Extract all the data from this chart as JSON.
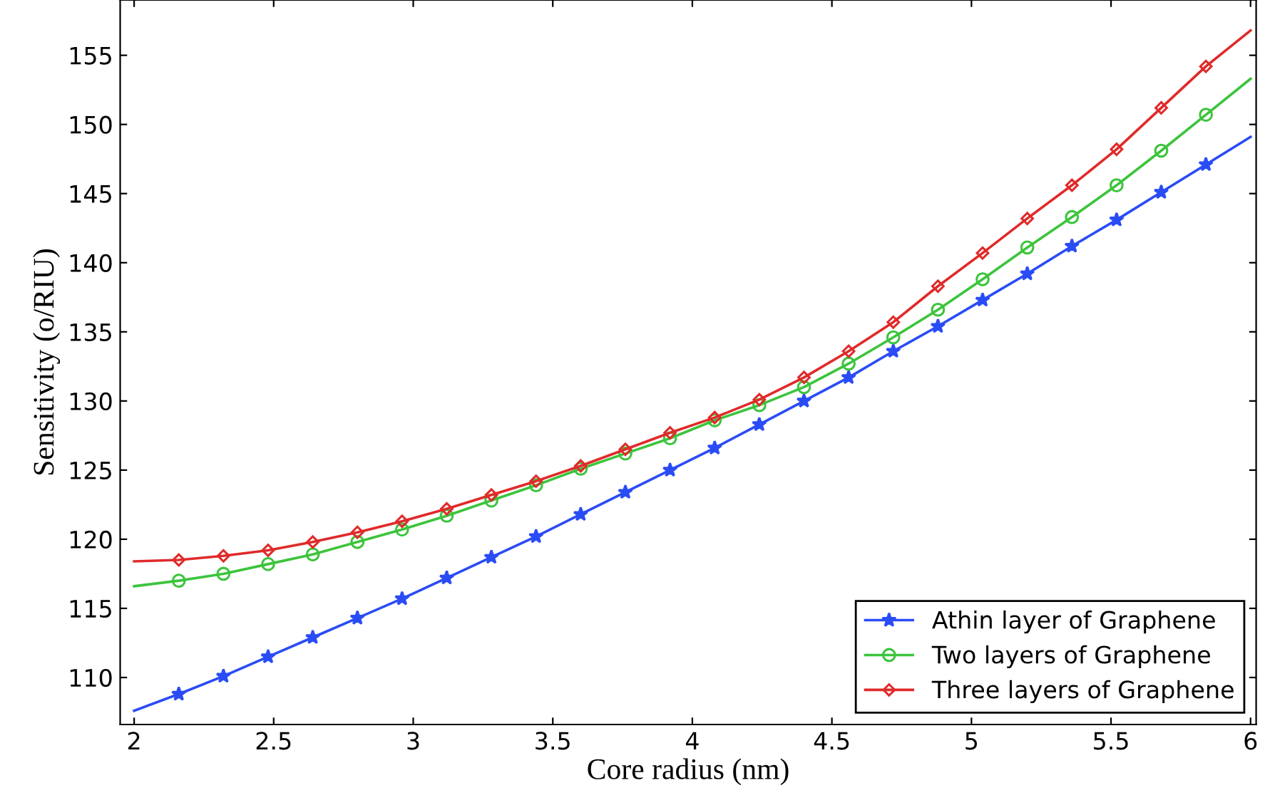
{
  "chart_data": {
    "type": "line",
    "xlabel": "Core radius (nm)",
    "ylabel": "Sensitivity (o/RIU)",
    "x": [
      2,
      2.16,
      2.32,
      2.48,
      2.64,
      2.8,
      2.96,
      3.12,
      3.28,
      3.44,
      3.6,
      3.76,
      3.92,
      4.08,
      4.24,
      4.4,
      4.56,
      4.72,
      4.88,
      5.04,
      5.2,
      5.36,
      5.52,
      5.68,
      5.84,
      6
    ],
    "series": [
      {
        "name": "Athin layer of Graphene",
        "color": "#2a4cf5",
        "marker": "star",
        "values": [
          107.6,
          108.8,
          110.1,
          111.5,
          112.9,
          114.3,
          115.7,
          117.2,
          118.7,
          120.2,
          121.8,
          123.4,
          125.0,
          126.6,
          128.3,
          130.0,
          131.7,
          133.6,
          135.4,
          137.3,
          139.2,
          141.2,
          143.1,
          145.1,
          147.1,
          149.1
        ]
      },
      {
        "name": "Two layers of Graphene",
        "color": "#3cc43c",
        "marker": "circle",
        "values": [
          116.6,
          117.0,
          117.5,
          118.2,
          118.9,
          119.8,
          120.7,
          121.7,
          122.8,
          123.9,
          125.1,
          126.2,
          127.3,
          128.6,
          129.7,
          131.0,
          132.7,
          134.6,
          136.6,
          138.8,
          141.1,
          143.3,
          145.6,
          148.1,
          150.7,
          153.3
        ]
      },
      {
        "name": "Three layers of Graphene",
        "color": "#e02a2a",
        "marker": "diamond",
        "values": [
          118.4,
          118.5,
          118.8,
          119.2,
          119.8,
          120.5,
          121.3,
          122.2,
          123.2,
          124.2,
          125.3,
          126.5,
          127.7,
          128.8,
          130.1,
          131.7,
          133.6,
          135.7,
          138.3,
          140.7,
          143.2,
          145.6,
          148.2,
          151.2,
          154.2,
          156.8
        ]
      }
    ],
    "xlim": [
      1.95,
      6.02
    ],
    "xticks": [
      2,
      2.5,
      3,
      3.5,
      4,
      4.5,
      5,
      5.5,
      6
    ],
    "ylim": [
      106.6,
      159
    ],
    "yticks": [
      110,
      115,
      120,
      125,
      130,
      135,
      140,
      145,
      150,
      155
    ],
    "grid": false,
    "legend": "bottom right"
  }
}
